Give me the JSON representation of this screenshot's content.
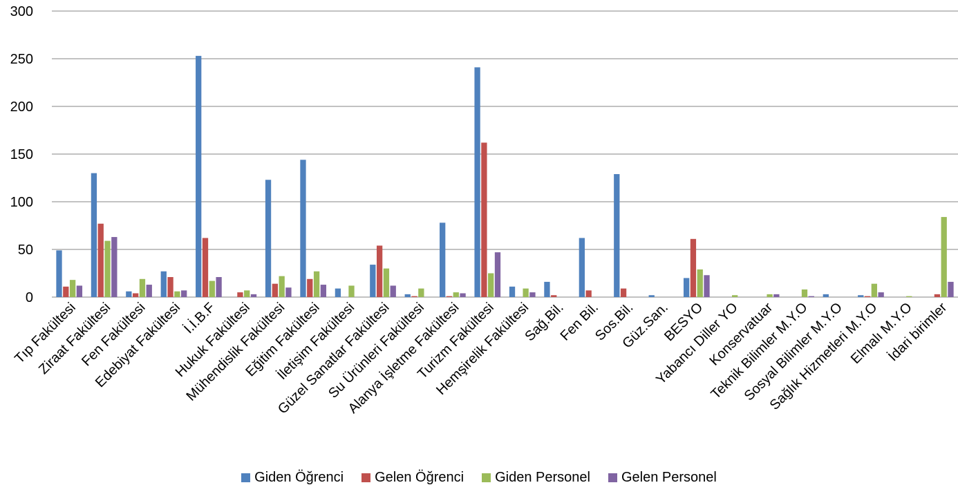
{
  "chart_data": {
    "type": "bar",
    "ylim": [
      0,
      300
    ],
    "yticks": [
      0,
      50,
      100,
      150,
      200,
      250,
      300
    ],
    "grid": true,
    "legend_position": "bottom",
    "categories": [
      "Tıp Fakültesi",
      "Ziraat Fakültesi",
      "Fen Fakültesi",
      "Edebiyat Fakültesi",
      "İ.İ.B.F",
      "Hukuk Fakültesi",
      "Mühendislik Fakültesi",
      "Eğitim Fakültesi",
      "İletişim Fakültesi",
      "Güzel Sanatlar Fakültesi",
      "Su Ürünleri Fakültesi",
      "Alanya İşletme Fakültesi",
      "Turizm Fakültesi",
      "Hemşirelik Fakültesi",
      "Sağ.Bil.",
      "Fen Bil.",
      "Sos.Bil.",
      "Güz.San.",
      "BESYO",
      "Yabancı Diller YO",
      "Konservatuar",
      "Teknik Bilimler M.Y.O",
      "Sosyal Bilimler M.Y.O",
      "Sağlık Hizmetleri M.Y.O",
      "Elmalı M.Y.O",
      "İdari birimler"
    ],
    "series": [
      {
        "name": "Giden Öğrenci",
        "color": "#4F81BD",
        "values": [
          49,
          130,
          6,
          27,
          253,
          0,
          123,
          144,
          9,
          34,
          3,
          78,
          241,
          11,
          16,
          62,
          129,
          2,
          20,
          0,
          0,
          0,
          3,
          2,
          0,
          0
        ]
      },
      {
        "name": "Gelen Öğrenci",
        "color": "#C0504D",
        "values": [
          11,
          77,
          4,
          21,
          62,
          5,
          14,
          19,
          0,
          54,
          1,
          1,
          162,
          0,
          2,
          7,
          9,
          0,
          61,
          0,
          0,
          0,
          0,
          1,
          0,
          3
        ]
      },
      {
        "name": "Giden Personel",
        "color": "#9BBB59",
        "values": [
          18,
          59,
          19,
          6,
          17,
          7,
          22,
          27,
          12,
          30,
          9,
          5,
          25,
          9,
          0,
          0,
          0,
          0,
          29,
          2,
          3,
          8,
          0,
          14,
          1,
          84
        ]
      },
      {
        "name": "Gelen Personel",
        "color": "#8064A2",
        "values": [
          12,
          63,
          13,
          7,
          21,
          3,
          10,
          13,
          0,
          12,
          0,
          4,
          47,
          5,
          0,
          0,
          0,
          0,
          23,
          0,
          3,
          1,
          0,
          5,
          0,
          16
        ]
      }
    ]
  }
}
